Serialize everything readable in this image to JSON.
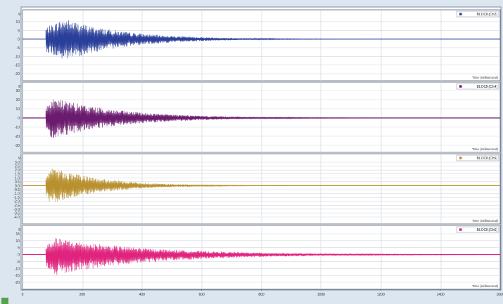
{
  "chart_data": [
    {
      "type": "line",
      "title": "",
      "xlabel": "Time (millisecond)",
      "ylabel": "g",
      "xlim": [
        0,
        1600
      ],
      "ylim": [
        -20,
        12
      ],
      "yticks": [
        "10",
        "5",
        "0",
        "-5",
        "-10",
        "-15",
        "-20"
      ],
      "series": [
        {
          "name": "BLOCK(Ch2)",
          "color": "#2a3f9a",
          "onset_ms": 78,
          "peak_ms": 140,
          "peak_amplitude": 12,
          "min_amplitude": -13,
          "decay_end_ms": 700
        }
      ],
      "grid": true,
      "legend": "top-right"
    },
    {
      "type": "line",
      "title": "",
      "xlabel": "Time (millisecond)",
      "ylabel": "g",
      "xlim": [
        0,
        1600
      ],
      "ylim": [
        -30,
        30
      ],
      "yticks": [
        "30",
        "20",
        "10",
        "0",
        "-10",
        "-20",
        "-30"
      ],
      "series": [
        {
          "name": "BLOCK(Ch4)",
          "color": "#6b1b6e",
          "onset_ms": 78,
          "peak_ms": 100,
          "peak_amplitude": 23,
          "min_amplitude": -23,
          "decay_end_ms": 800
        }
      ],
      "grid": true,
      "legend": "top-right"
    },
    {
      "type": "line",
      "title": "",
      "xlabel": "Time (millisecond)",
      "ylabel": "g",
      "xlim": [
        0,
        1600
      ],
      "ylim": [
        -4.0,
        3.0
      ],
      "yticks": [
        "3.0",
        "2.5",
        "2.0",
        "1.5",
        "1.0",
        "0.5",
        "0.0",
        "-0.5",
        "-1.0",
        "-1.5",
        "-2.0",
        "-2.5",
        "-3.0",
        "-3.5",
        "-4.0"
      ],
      "series": [
        {
          "name": "BLOCK(Ch5)",
          "color": "#b8902e",
          "onset_ms": 78,
          "peak_ms": 90,
          "peak_amplitude": 2.6,
          "min_amplitude": -2.5,
          "decay_end_ms": 600
        }
      ],
      "grid": true,
      "legend": "top-right"
    },
    {
      "type": "line",
      "title": "",
      "xlabel": "Time (millisecond)",
      "ylabel": "g",
      "xlim": [
        0,
        1600
      ],
      "ylim": [
        -20,
        15
      ],
      "yticks": [
        "15",
        "10",
        "5",
        "0",
        "-5",
        "-10",
        "-15",
        "-20"
      ],
      "xticks": [
        "0",
        "200",
        "400",
        "600",
        "800",
        "1000",
        "1200",
        "1400",
        "1600"
      ],
      "series": [
        {
          "name": "BLOCK(Ch6)",
          "color": "#e0247e",
          "onset_ms": 78,
          "peak_ms": 110,
          "peak_amplitude": 12,
          "min_amplitude": -15,
          "decay_end_ms": 1100
        }
      ],
      "grid": true,
      "legend": "top-right"
    }
  ]
}
